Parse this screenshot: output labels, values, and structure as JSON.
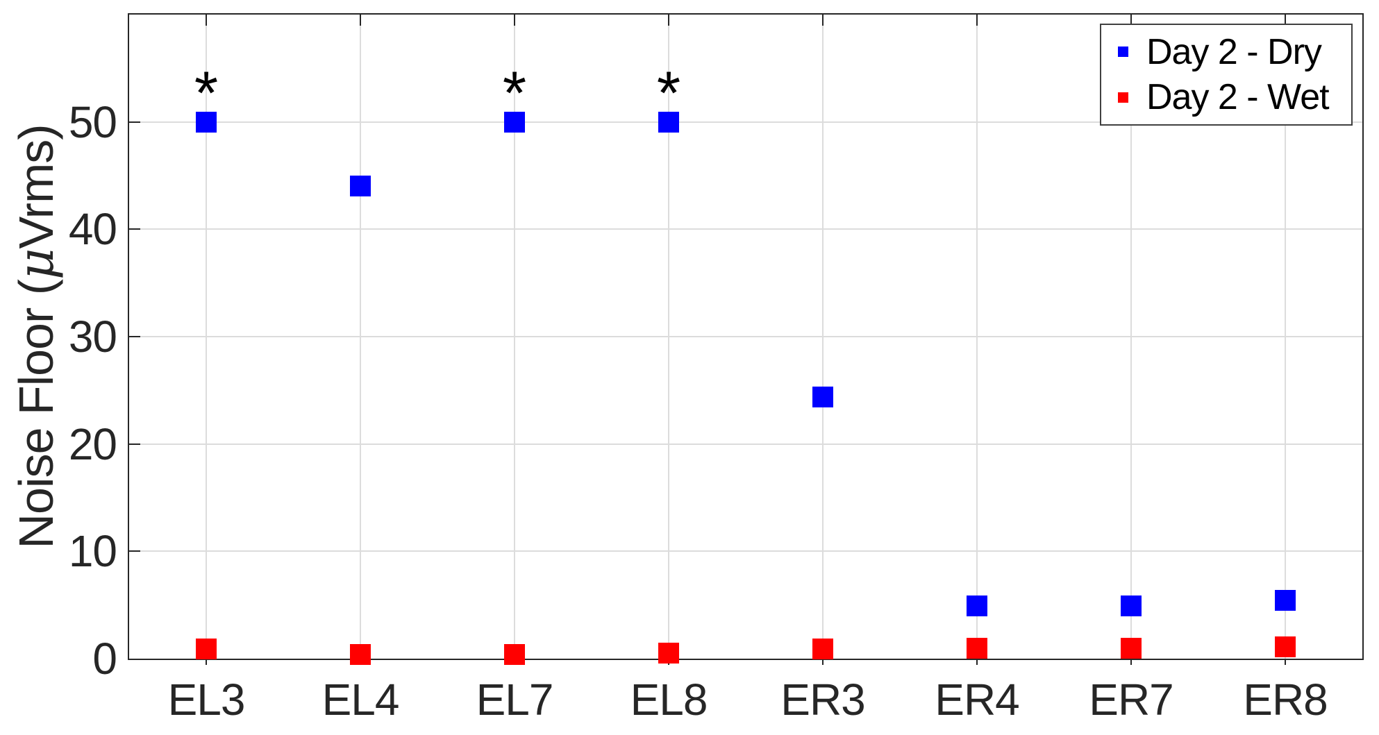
{
  "figure": {
    "background_color": "#ffffff",
    "axis_color": "#262626",
    "grid_color": "#dcdcdc",
    "text_color": "#262626"
  },
  "chart_data": {
    "type": "scatter",
    "title": "",
    "xlabel": "",
    "ylabel": "Noise Floor (μVrms)",
    "categories": [
      "EL3",
      "EL4",
      "EL7",
      "EL8",
      "ER3",
      "ER4",
      "ER7",
      "ER8"
    ],
    "series": [
      {
        "name": "Day 2 - Dry",
        "color": "#0000ff",
        "marker": "square",
        "values": [
          50,
          44,
          50,
          50,
          24.4,
          4.9,
          4.9,
          5.4
        ]
      },
      {
        "name": "Day 2 - Wet",
        "color": "#ff0000",
        "marker": "square",
        "values": [
          0.9,
          0.4,
          0.4,
          0.5,
          0.9,
          1.0,
          1.0,
          1.1
        ]
      }
    ],
    "annotations": [
      {
        "category": "EL3",
        "symbol": "*",
        "y": 53.7
      },
      {
        "category": "EL7",
        "symbol": "*",
        "y": 53.7
      },
      {
        "category": "EL8",
        "symbol": "*",
        "y": 53.7
      }
    ],
    "ylim": [
      0,
      60
    ],
    "yticks": [
      0,
      10,
      20,
      30,
      40,
      50
    ],
    "grid": true,
    "legend_position": "top-right"
  }
}
